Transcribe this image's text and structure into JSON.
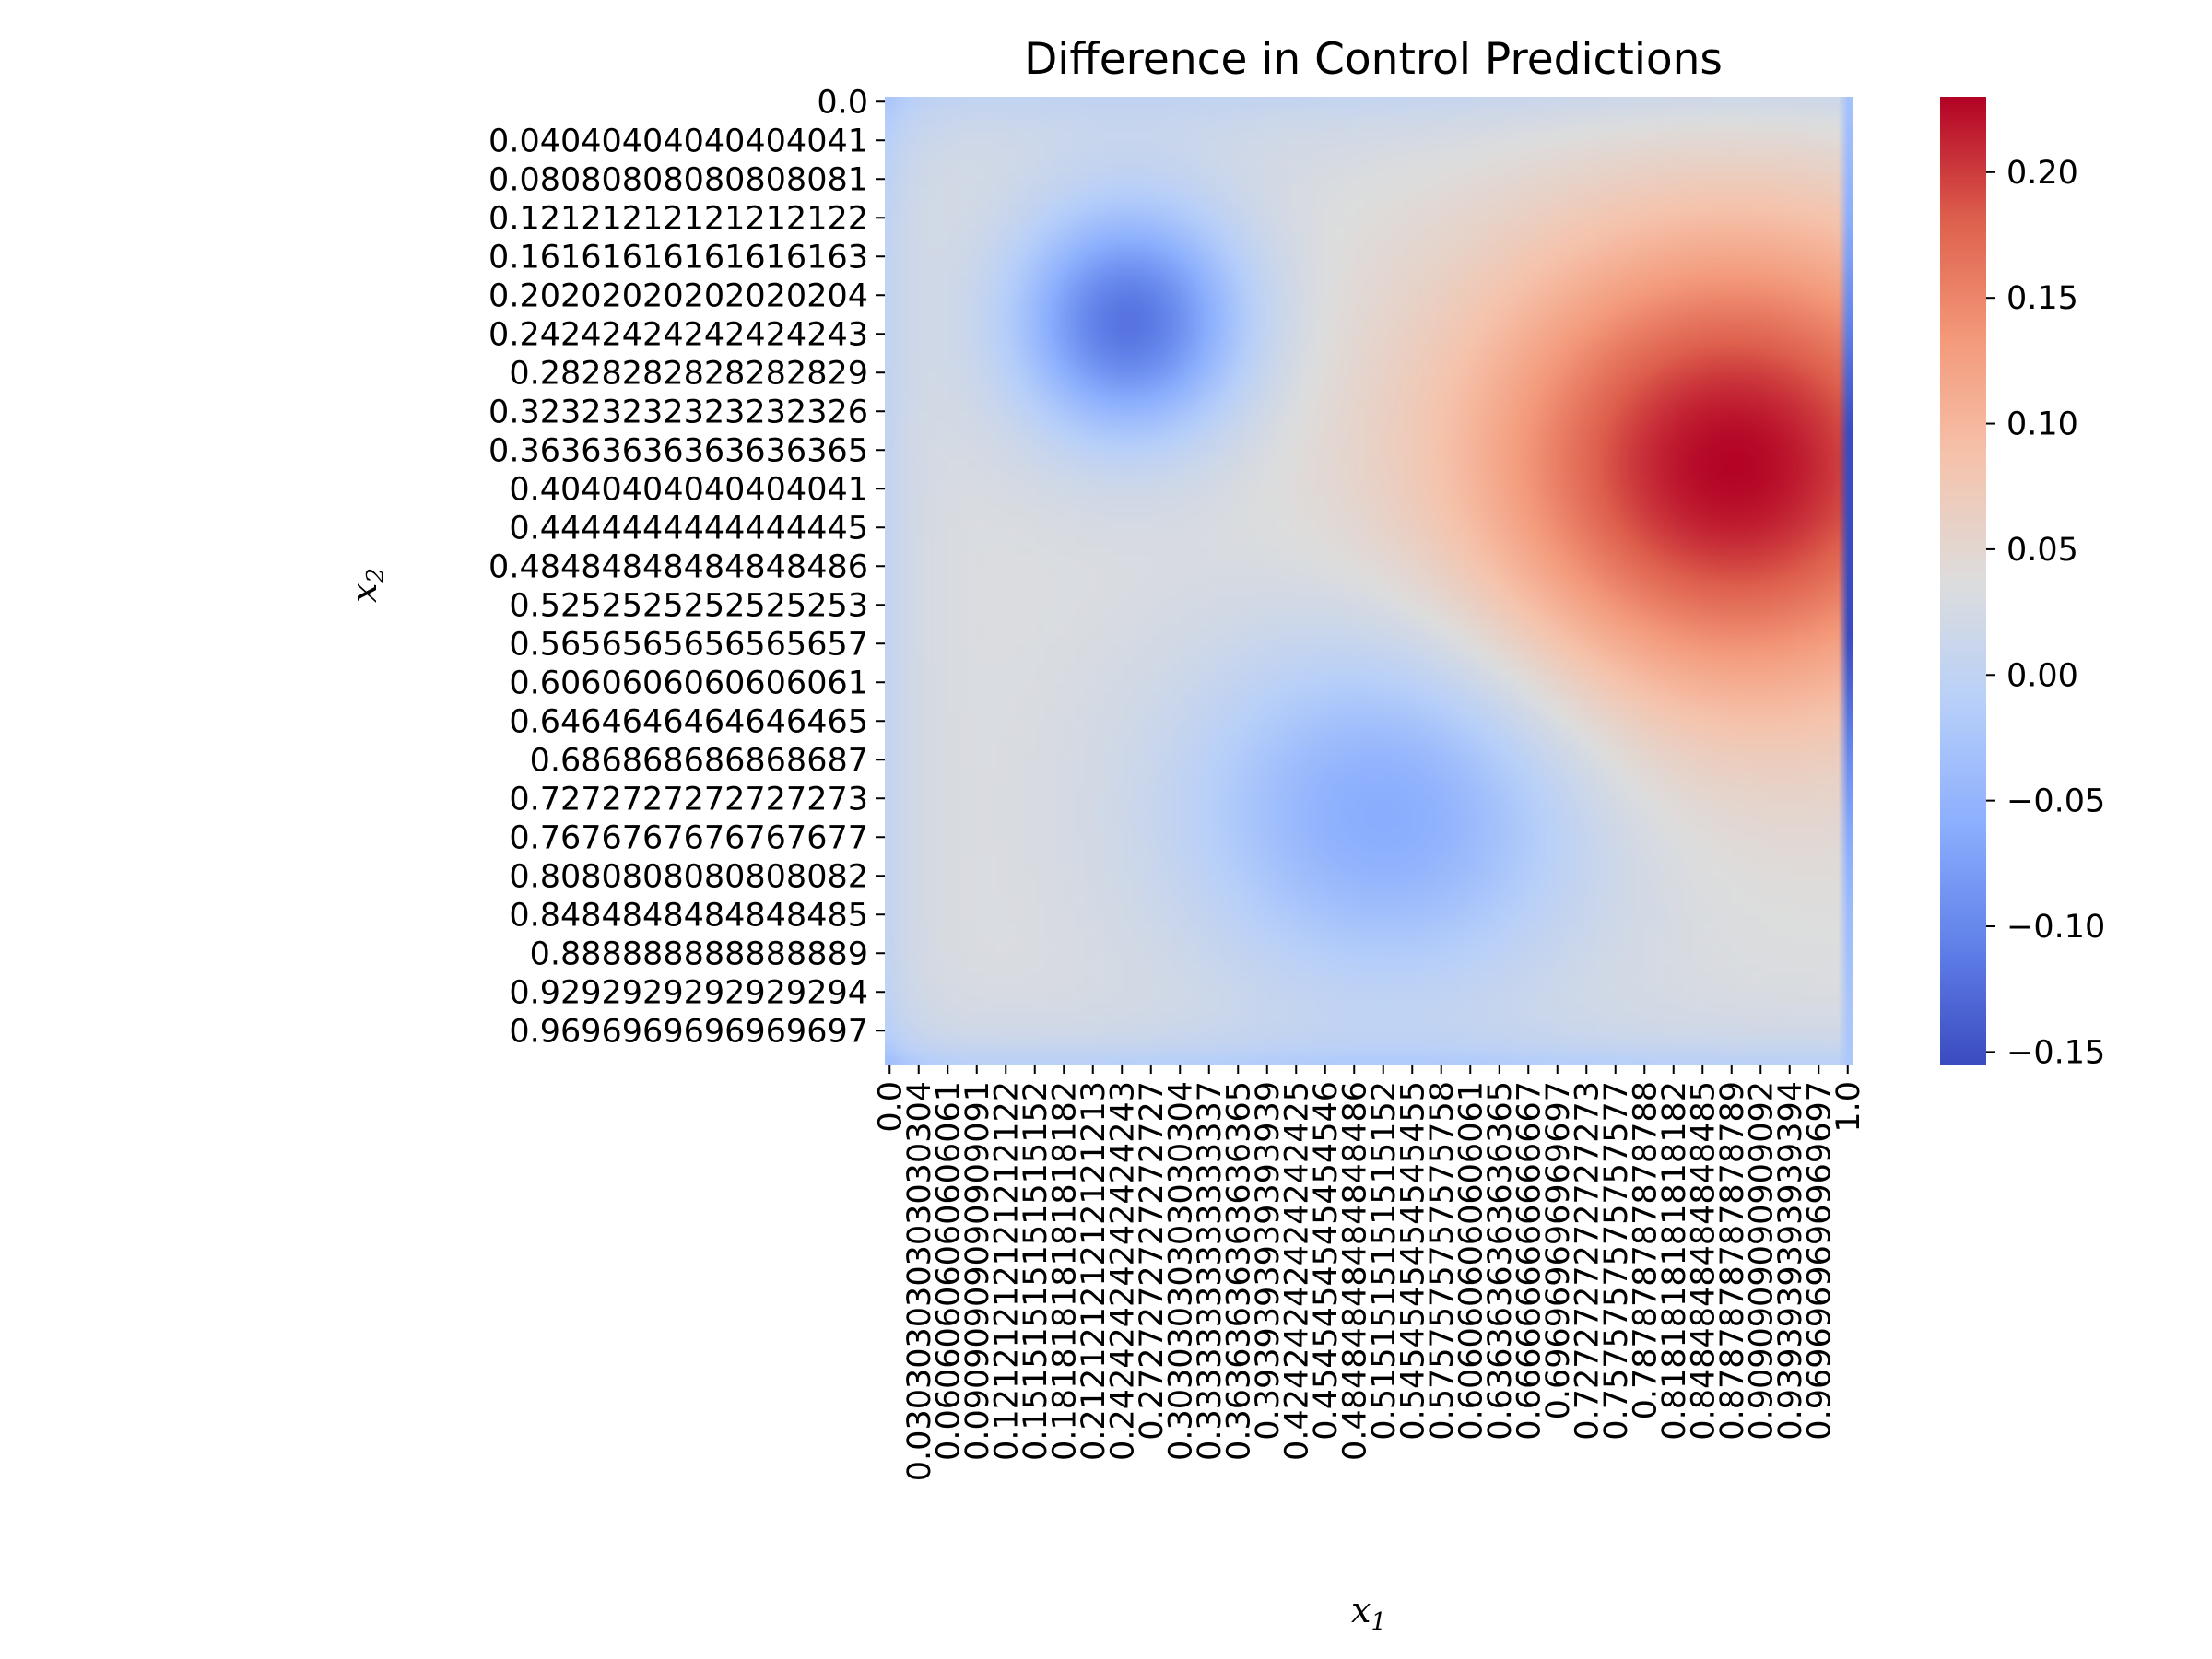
{
  "chart_data": {
    "type": "heatmap",
    "title": "Difference in Control Predictions",
    "xlabel": "x",
    "xlabel_sub": "1",
    "ylabel": "x",
    "ylabel_sub": "2",
    "x_range": [
      0.0,
      1.0
    ],
    "y_range": [
      0.0,
      1.0
    ],
    "grid_size": [
      100,
      100
    ],
    "colormap": "coolwarm",
    "colorbar_range": [
      -0.155,
      0.23
    ],
    "colorbar_ticks": [
      "0.20",
      "0.15",
      "0.10",
      "0.05",
      "0.00",
      "−0.05",
      "−0.10",
      "−0.15"
    ],
    "colorbar_tick_values": [
      0.2,
      0.15,
      0.1,
      0.05,
      0.0,
      -0.05,
      -0.1,
      -0.15
    ],
    "xtick_labels": [
      "0.0",
      "0.030303030303030304",
      "0.06060606060606061",
      "0.09090909090909091",
      "0.12121212121212122",
      "0.15151515151515152",
      "0.18181818181818182",
      "0.21212121212121213",
      "0.24242424242424243",
      "0.2727272727272727",
      "0.30303030303030304",
      "0.33333333333333337",
      "0.36363636363636365",
      "0.3939393939393939",
      "0.42424242424242425",
      "0.4545454545454546",
      "0.48484848484848486",
      "0.5151515151515152",
      "0.5454545454545455",
      "0.5757575757575758",
      "0.6060606060606061",
      "0.6363636363636365",
      "0.6666666666666667",
      "0.696969696969697",
      "0.7272727272727273",
      "0.7575757575757577",
      "0.787878787878788",
      "0.8181818181818182",
      "0.8484848484848485",
      "0.8787878787878789",
      "0.9090909090909092",
      "0.9393939393939394",
      "0.9696969696969697",
      "1.0"
    ],
    "ytick_labels": [
      "0.0",
      "0.04040404040404041",
      "0.08080808080808081",
      "0.12121212121212122",
      "0.16161616161616163",
      "0.20202020202020204",
      "0.24242424242424243",
      "0.2828282828282829",
      "0.32323232323232326",
      "0.36363636363636365",
      "0.4040404040404041",
      "0.4444444444444445",
      "0.48484848484848486",
      "0.5252525252525253",
      "0.5656565656565657",
      "0.6060606060606061",
      "0.6464646464646465",
      "0.686868686868687",
      "0.7272727272727273",
      "0.7676767676767677",
      "0.8080808080808082",
      "0.8484848484848485",
      "0.888888888888889",
      "0.9292929292929294",
      "0.9696969696969697"
    ],
    "features": [
      {
        "kind": "peak",
        "x": 0.88,
        "y": 0.38,
        "value": 0.23
      },
      {
        "kind": "trough",
        "x": 0.25,
        "y": 0.23,
        "value": -0.12
      },
      {
        "kind": "trough",
        "x": 0.52,
        "y": 0.74,
        "value": -0.07
      },
      {
        "kind": "edge",
        "x": 1.0,
        "y": 0.4,
        "value": -0.155
      }
    ]
  }
}
